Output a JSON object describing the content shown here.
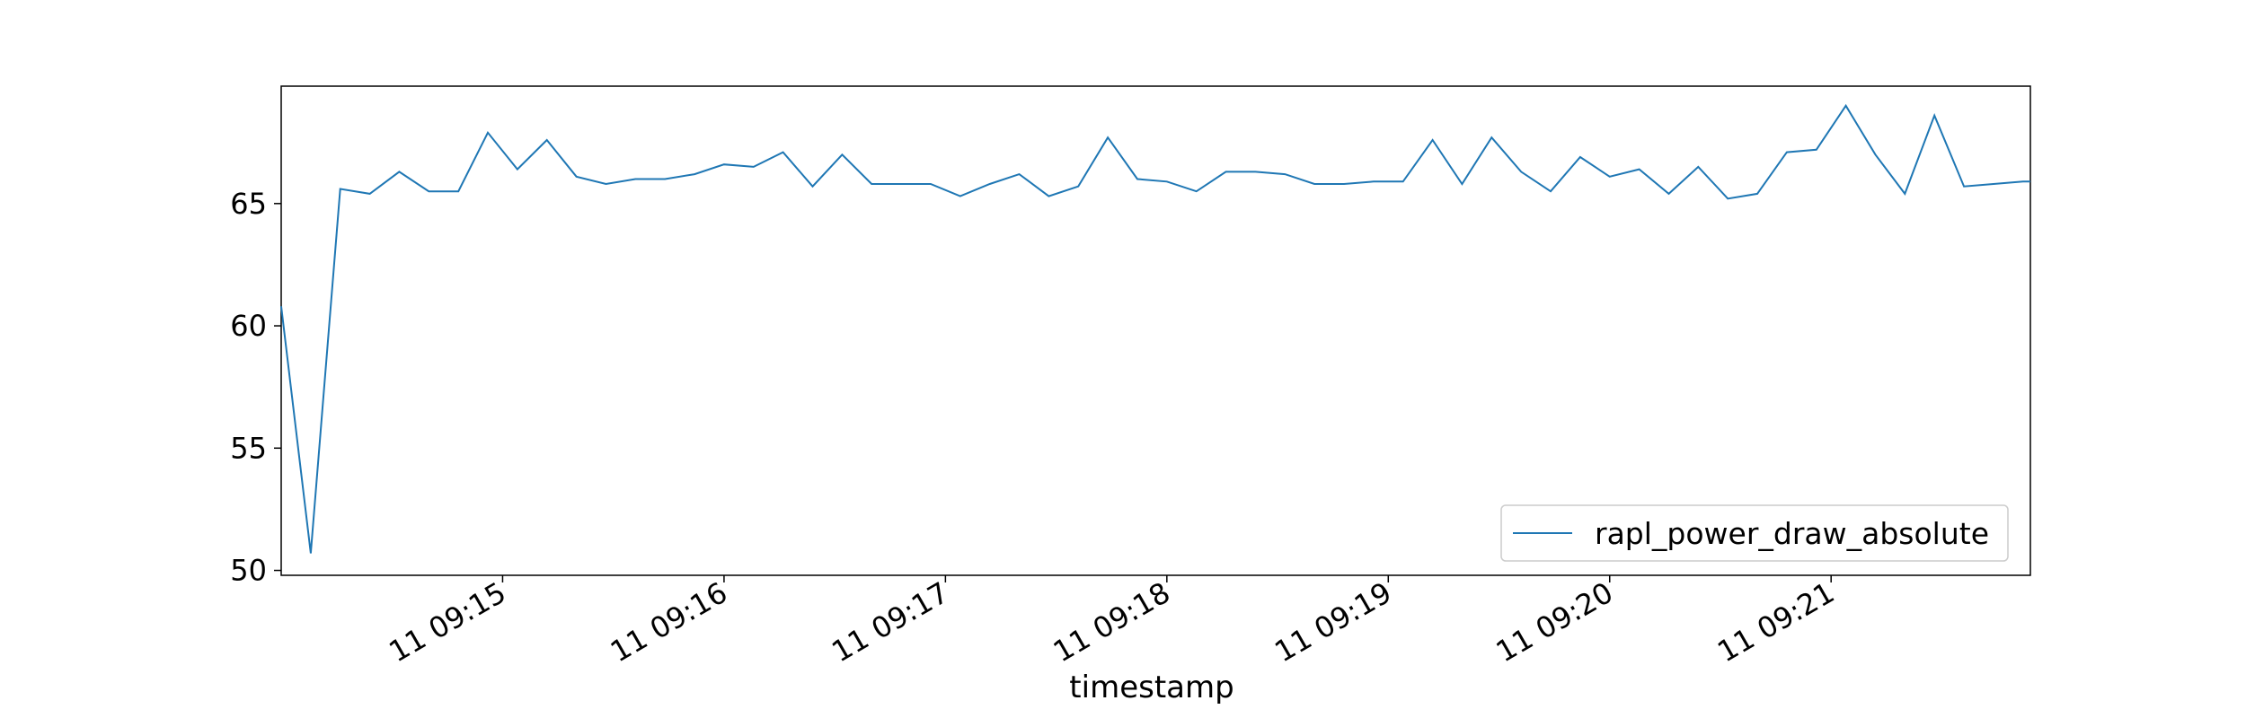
{
  "chart_data": {
    "type": "line",
    "title": "",
    "xlabel": "timestamp",
    "ylabel": "",
    "x_start": "11 09:14:00",
    "x_end": "11 09:21:54",
    "x_ticks": [
      "11 09:15",
      "11 09:16",
      "11 09:17",
      "11 09:18",
      "11 09:19",
      "11 09:20",
      "11 09:21"
    ],
    "ylim": [
      49.8,
      69.8
    ],
    "y_ticks": [
      50,
      55,
      60,
      65
    ],
    "grid": false,
    "legend_position": "lower-right",
    "colors": {
      "series": "#1f77b4",
      "axes": "#000000"
    },
    "series": [
      {
        "name": "rapl_power_draw_absolute",
        "x": [
          "11 09:14:00",
          "11 09:14:08",
          "11 09:14:16",
          "11 09:14:24",
          "11 09:14:32",
          "11 09:14:40",
          "11 09:14:48",
          "11 09:14:56",
          "11 09:15:04",
          "11 09:15:12",
          "11 09:15:20",
          "11 09:15:28",
          "11 09:15:36",
          "11 09:15:44",
          "11 09:15:52",
          "11 09:16:00",
          "11 09:16:08",
          "11 09:16:16",
          "11 09:16:24",
          "11 09:16:32",
          "11 09:16:40",
          "11 09:16:48",
          "11 09:16:56",
          "11 09:17:04",
          "11 09:17:12",
          "11 09:17:20",
          "11 09:17:28",
          "11 09:17:36",
          "11 09:17:44",
          "11 09:17:52",
          "11 09:18:00",
          "11 09:18:08",
          "11 09:18:16",
          "11 09:18:24",
          "11 09:18:32",
          "11 09:18:40",
          "11 09:18:48",
          "11 09:18:56",
          "11 09:19:04",
          "11 09:19:12",
          "11 09:19:20",
          "11 09:19:28",
          "11 09:19:36",
          "11 09:19:44",
          "11 09:19:52",
          "11 09:20:00",
          "11 09:20:08",
          "11 09:20:16",
          "11 09:20:24",
          "11 09:20:32",
          "11 09:20:40",
          "11 09:20:48",
          "11 09:20:56",
          "11 09:21:04",
          "11 09:21:12",
          "11 09:21:20",
          "11 09:21:28",
          "11 09:21:36",
          "11 09:21:44",
          "11 09:21:52",
          "11 09:21:54"
        ],
        "y": [
          60.8,
          50.7,
          65.6,
          65.4,
          66.3,
          65.5,
          65.5,
          67.9,
          66.4,
          67.6,
          66.1,
          65.8,
          66.0,
          66.0,
          66.2,
          66.6,
          66.5,
          67.1,
          65.7,
          67.0,
          65.8,
          65.8,
          65.8,
          65.3,
          65.8,
          66.2,
          65.3,
          65.7,
          67.7,
          66.0,
          65.9,
          65.5,
          66.3,
          66.3,
          66.2,
          65.8,
          65.8,
          65.9,
          65.9,
          67.6,
          65.8,
          67.7,
          66.3,
          65.5,
          66.9,
          66.1,
          66.4,
          65.4,
          66.5,
          65.2,
          65.4,
          67.1,
          67.2,
          69.0,
          67.0,
          65.4,
          68.6,
          65.7,
          65.8,
          65.9,
          65.9
        ]
      }
    ]
  }
}
